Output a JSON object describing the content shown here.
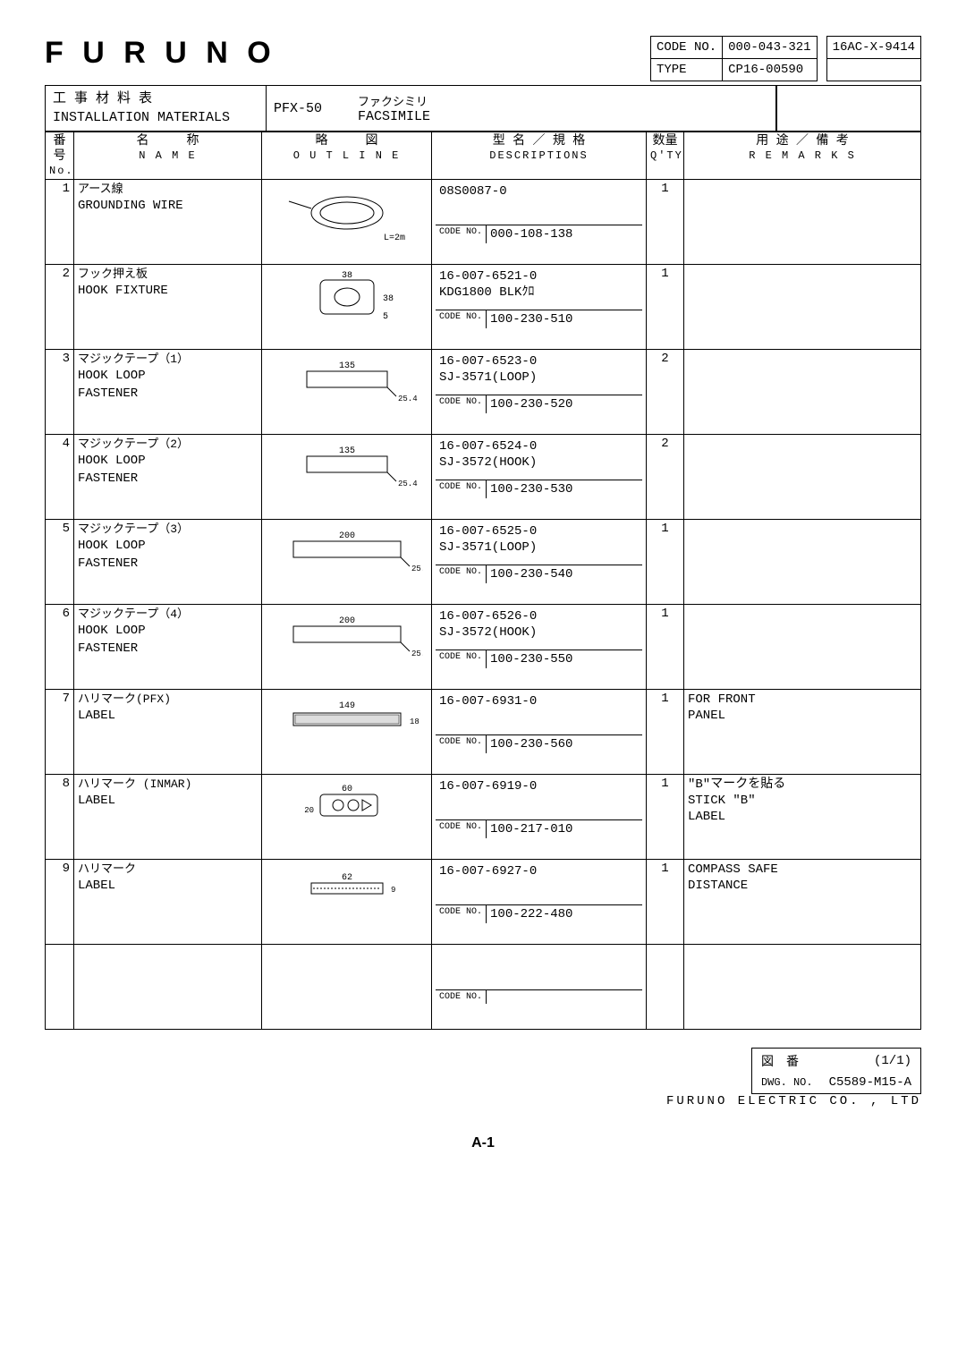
{
  "logo": "F U R U N O",
  "header": {
    "code_no_label": "CODE NO.",
    "code_no": "000-043-321",
    "type_label": "TYPE",
    "type": "CP16-00590",
    "right_code": "16AC-X-9414"
  },
  "title_block": {
    "jp": "工 事 材 料 表",
    "en": "INSTALLATION MATERIALS",
    "model": "PFX-50",
    "facsimile_jp": "ファクシミリ",
    "facsimile_en": "FACSIMILE"
  },
  "columns": {
    "no_jp": "番号",
    "no_en": "No.",
    "name_jp": "名　　　称",
    "name_en": "N A M E",
    "outline_jp": "略　　　図",
    "outline_en": "O U T L I N E",
    "desc_jp": "型 名 ／ 規 格",
    "desc_en": "DESCRIPTIONS",
    "qty_jp": "数量",
    "qty_en": "Q'TY",
    "rem_jp": "用 途 ／ 備 考",
    "rem_en": "R E M A R K S"
  },
  "rows": [
    {
      "no": "1",
      "name_jp": "アース線",
      "name_en": "GROUNDING WIRE",
      "outline_dim": "L=2m",
      "desc_top": "08S0087-0",
      "code_no": "000-108-138",
      "qty": "1",
      "remarks": ""
    },
    {
      "no": "2",
      "name_jp": "フック押え板",
      "name_en": "HOOK FIXTURE",
      "outline_dim": "38 / 38 / 5",
      "desc_top": "16-007-6521-0\nKDG1800 BLKｸﾛ",
      "code_no": "100-230-510",
      "qty": "1",
      "remarks": ""
    },
    {
      "no": "3",
      "name_jp": "マジックテープ（1）",
      "name_en": "HOOK LOOP\nFASTENER",
      "outline_dim": "135 / 25.4",
      "desc_top": "16-007-6523-0\nSJ-3571(LOOP)",
      "code_no": "100-230-520",
      "qty": "2",
      "remarks": ""
    },
    {
      "no": "4",
      "name_jp": "マジックテープ（2）",
      "name_en": "HOOK LOOP\nFASTENER",
      "outline_dim": "135 / 25.4",
      "desc_top": "16-007-6524-0\nSJ-3572(HOOK)",
      "code_no": "100-230-530",
      "qty": "2",
      "remarks": ""
    },
    {
      "no": "5",
      "name_jp": "マジックテープ（3）",
      "name_en": "HOOK LOOP\nFASTENER",
      "outline_dim": "200 / 25.4",
      "desc_top": "16-007-6525-0\nSJ-3571(LOOP)",
      "code_no": "100-230-540",
      "qty": "1",
      "remarks": ""
    },
    {
      "no": "6",
      "name_jp": "マジックテープ（4）",
      "name_en": "HOOK LOOP\nFASTENER",
      "outline_dim": "200 / 25.4",
      "desc_top": "16-007-6526-0\nSJ-3572(HOOK)",
      "code_no": "100-230-550",
      "qty": "1",
      "remarks": ""
    },
    {
      "no": "7",
      "name_jp": "ハリマーク(PFX)",
      "name_en": "LABEL",
      "outline_dim": "149 / 18",
      "desc_top": "16-007-6931-0",
      "code_no": "100-230-560",
      "qty": "1",
      "remarks": "FOR FRONT\nPANEL"
    },
    {
      "no": "8",
      "name_jp": "ハリマーク (INMAR)",
      "name_en": "LABEL",
      "outline_dim": "60 / 20",
      "desc_top": "16-007-6919-0",
      "code_no": "100-217-010",
      "qty": "1",
      "remarks": "\"B\"マークを貼る\nSTICK \"B\"\nLABEL"
    },
    {
      "no": "9",
      "name_jp": "ハリマーク",
      "name_en": "LABEL",
      "outline_dim": "62 / 9",
      "desc_top": "16-007-6927-0",
      "code_no": "100-222-480",
      "qty": "1",
      "remarks": "COMPASS SAFE\nDISTANCE"
    },
    {
      "no": "",
      "name_jp": "",
      "name_en": "",
      "outline_dim": "",
      "desc_top": "",
      "code_no": "",
      "qty": "",
      "remarks": ""
    }
  ],
  "footer": {
    "page_of": "(1/1)",
    "fig_jp": "図　番",
    "dwg_label": "DWG. NO.",
    "dwg_no": "C5589-M15-A",
    "company": "FURUNO   ELECTRIC   CO. , LTD"
  },
  "page_label": "A-1",
  "code_no_small": "CODE NO."
}
